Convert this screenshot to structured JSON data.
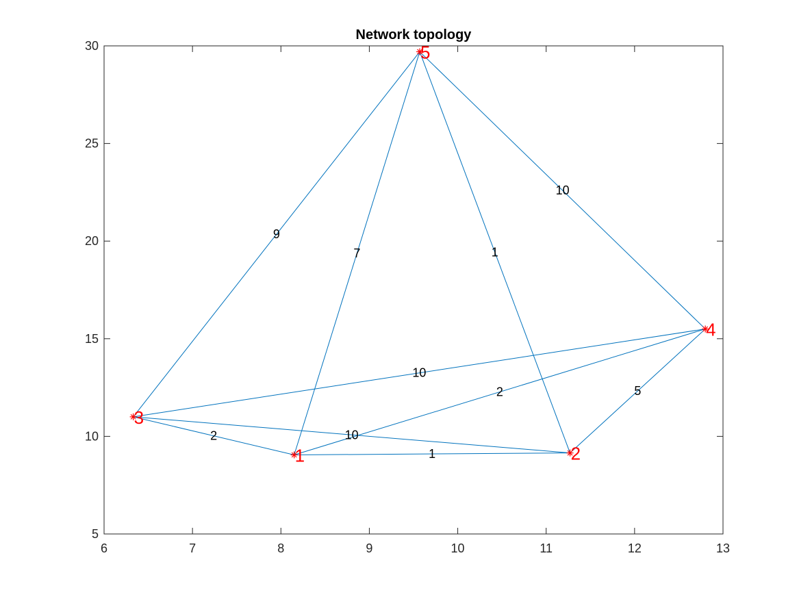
{
  "chart_data": {
    "type": "network-graph",
    "title": "Network topology",
    "xlabel": "",
    "ylabel": "",
    "xlim": [
      6,
      13
    ],
    "ylim": [
      5,
      30
    ],
    "xticks": [
      "6",
      "7",
      "8",
      "9",
      "10",
      "11",
      "12",
      "13"
    ],
    "yticks": [
      "5",
      "10",
      "15",
      "20",
      "25",
      "30"
    ],
    "grid": false,
    "colors": {
      "edge": "#0072BD",
      "node": "#FF0000",
      "axis": "#262626",
      "text": "#000000"
    },
    "nodes": [
      {
        "id": "1",
        "label": "1",
        "x": 8.15,
        "y": 9.05
      },
      {
        "id": "2",
        "label": "2",
        "x": 11.27,
        "y": 9.15
      },
      {
        "id": "3",
        "label": "3",
        "x": 6.33,
        "y": 11.0
      },
      {
        "id": "4",
        "label": "4",
        "x": 12.8,
        "y": 15.5
      },
      {
        "id": "5",
        "label": "5",
        "x": 9.57,
        "y": 29.7
      }
    ],
    "edges": [
      {
        "source": "3",
        "target": "5",
        "weight": "9"
      },
      {
        "source": "1",
        "target": "5",
        "weight": "7"
      },
      {
        "source": "2",
        "target": "5",
        "weight": "1"
      },
      {
        "source": "4",
        "target": "5",
        "weight": "10"
      },
      {
        "source": "3",
        "target": "4",
        "weight": "10"
      },
      {
        "source": "1",
        "target": "4",
        "weight": "2"
      },
      {
        "source": "2",
        "target": "4",
        "weight": "5"
      },
      {
        "source": "3",
        "target": "1",
        "weight": "2"
      },
      {
        "source": "3",
        "target": "2",
        "weight": "10"
      },
      {
        "source": "1",
        "target": "2",
        "weight": "1"
      }
    ]
  }
}
